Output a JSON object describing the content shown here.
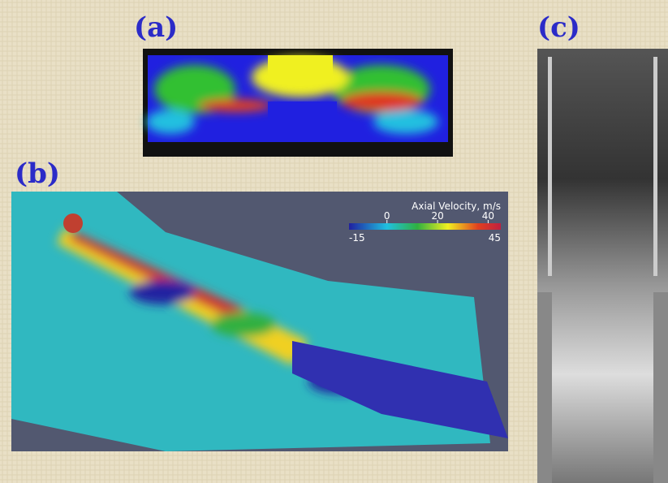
{
  "panels": [
    {
      "label": "(a)"
    },
    {
      "label": "(b)"
    },
    {
      "label": "(c)"
    }
  ],
  "colorbar": {
    "title": "Axial Velocity, m/s",
    "ticks": [
      0,
      20,
      40
    ],
    "range": [
      -15,
      45
    ]
  }
}
